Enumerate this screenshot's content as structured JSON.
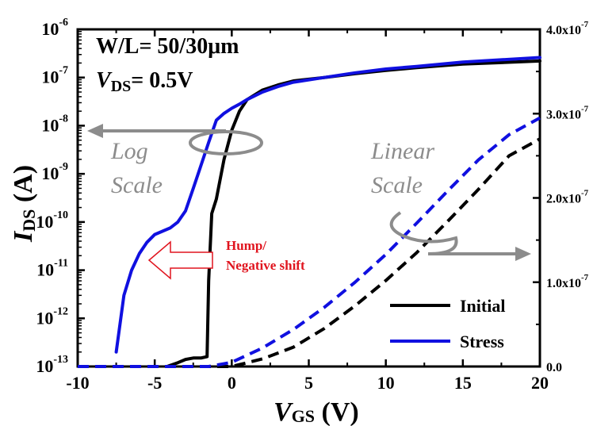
{
  "chart_data": {
    "type": "line",
    "x_axis": {
      "title_main": "V",
      "title_sub": "GS",
      "title_unit": " (V)",
      "range": [
        -10,
        20
      ],
      "ticks": [
        -10,
        -5,
        0,
        5,
        10,
        15,
        20
      ],
      "tick_labels": [
        "-10",
        "-5",
        "0",
        "5",
        "10",
        "15",
        "20"
      ]
    },
    "y_left_axis": {
      "title_main": "I",
      "title_sub": "DS",
      "title_unit": " (A)",
      "scale": "log",
      "range": [
        1e-13,
        1e-06
      ],
      "tick_labels": [
        {
          "base": "10",
          "exp": "-6"
        },
        {
          "base": "10",
          "exp": "-7"
        },
        {
          "base": "10",
          "exp": "-8"
        },
        {
          "base": "10",
          "exp": "-9"
        },
        {
          "base": "10",
          "exp": "-10"
        },
        {
          "base": "10",
          "exp": "-11"
        },
        {
          "base": "10",
          "exp": "-12"
        },
        {
          "base": "10",
          "exp": "-13"
        }
      ]
    },
    "y_right_axis": {
      "scale": "linear",
      "range": [
        0,
        4e-07
      ],
      "tick_labels": [
        {
          "base": "4.0x10",
          "exp": "-7"
        },
        {
          "base": "3.0x10",
          "exp": "-7"
        },
        {
          "base": "2.0x10",
          "exp": "-7"
        },
        {
          "base": "1.0x10",
          "exp": "-7"
        },
        {
          "base": "0.0",
          "exp": ""
        }
      ]
    },
    "annotations": {
      "spec_line1": "W/L= 50/30μm",
      "spec_line2_main": "V",
      "spec_line2_sub": "DS",
      "spec_line2_rest": "= 0.5V",
      "log_scale_1": "Log",
      "log_scale_2": "Scale",
      "linear_scale_1": "Linear",
      "linear_scale_2": "Scale",
      "hump_1": "Hump/",
      "hump_2": "Negative shift"
    },
    "legend": {
      "position": "bottom-right",
      "entries": [
        "Initial",
        "Stress"
      ]
    },
    "series": [
      {
        "name": "Initial",
        "color": "#000000",
        "axis": "left-log",
        "style": "solid",
        "points": [
          [
            -4.2,
            1e-13
          ],
          [
            -3.5,
            1.2e-13
          ],
          [
            -3.0,
            1.4e-13
          ],
          [
            -2.5,
            1.5e-13
          ],
          [
            -2.0,
            1.5e-13
          ],
          [
            -1.6,
            1.6e-13
          ],
          [
            -1.5,
            6e-12
          ],
          [
            -1.3,
            1.5e-10
          ],
          [
            -1.0,
            3e-10
          ],
          [
            -0.5,
            2e-09
          ],
          [
            0,
            8e-09
          ],
          [
            0.5,
            2e-08
          ],
          [
            1,
            3.5e-08
          ],
          [
            2,
            5.5e-08
          ],
          [
            3,
            7e-08
          ],
          [
            4,
            8.5e-08
          ],
          [
            6,
            1e-07
          ],
          [
            8,
            1.2e-07
          ],
          [
            10,
            1.4e-07
          ],
          [
            12,
            1.6e-07
          ],
          [
            15,
            1.9e-07
          ],
          [
            20,
            2.2e-07
          ]
        ]
      },
      {
        "name": "Stress",
        "color": "#1010e0",
        "axis": "left-log",
        "style": "solid",
        "points": [
          [
            -7.5,
            2e-13
          ],
          [
            -7.0,
            3e-12
          ],
          [
            -6.5,
            1e-11
          ],
          [
            -6.0,
            2.2e-11
          ],
          [
            -5.5,
            3.8e-11
          ],
          [
            -5.0,
            5.5e-11
          ],
          [
            -4.0,
            7.5e-11
          ],
          [
            -3.5,
            1e-10
          ],
          [
            -3.0,
            1.7e-10
          ],
          [
            -2.5,
            5e-10
          ],
          [
            -2.0,
            1.5e-09
          ],
          [
            -1.5,
            4.5e-09
          ],
          [
            -1.0,
            1.3e-08
          ],
          [
            -0.5,
            1.8e-08
          ],
          [
            0,
            2.3e-08
          ],
          [
            0.5,
            2.8e-08
          ],
          [
            1,
            3.5e-08
          ],
          [
            2,
            5e-08
          ],
          [
            3,
            6.5e-08
          ],
          [
            4,
            8e-08
          ],
          [
            6,
            1e-07
          ],
          [
            8,
            1.25e-07
          ],
          [
            10,
            1.5e-07
          ],
          [
            12,
            1.7e-07
          ],
          [
            15,
            2.1e-07
          ],
          [
            20,
            2.6e-07
          ]
        ]
      },
      {
        "name": "Initial",
        "color": "#000000",
        "axis": "right-linear",
        "style": "dashed",
        "points": [
          [
            -10,
            0
          ],
          [
            0,
            0
          ],
          [
            2,
            9e-09
          ],
          [
            4,
            2.3e-08
          ],
          [
            6,
            4.5e-08
          ],
          [
            8,
            7.2e-08
          ],
          [
            10,
            1.02e-07
          ],
          [
            12,
            1.35e-07
          ],
          [
            14,
            1.72e-07
          ],
          [
            16,
            2.1e-07
          ],
          [
            18,
            2.5e-07
          ],
          [
            20,
            2.7e-07
          ]
        ]
      },
      {
        "name": "Stress",
        "color": "#1010e0",
        "axis": "right-linear",
        "style": "dashed",
        "points": [
          [
            -10,
            0
          ],
          [
            -1.5,
            0
          ],
          [
            0,
            5e-09
          ],
          [
            2,
            2.2e-08
          ],
          [
            4,
            4.4e-08
          ],
          [
            6,
            7e-08
          ],
          [
            8,
            1e-07
          ],
          [
            10,
            1.33e-07
          ],
          [
            12,
            1.7e-07
          ],
          [
            14,
            2.08e-07
          ],
          [
            16,
            2.45e-07
          ],
          [
            18,
            2.75e-07
          ],
          [
            20,
            2.95e-07
          ]
        ]
      }
    ]
  }
}
